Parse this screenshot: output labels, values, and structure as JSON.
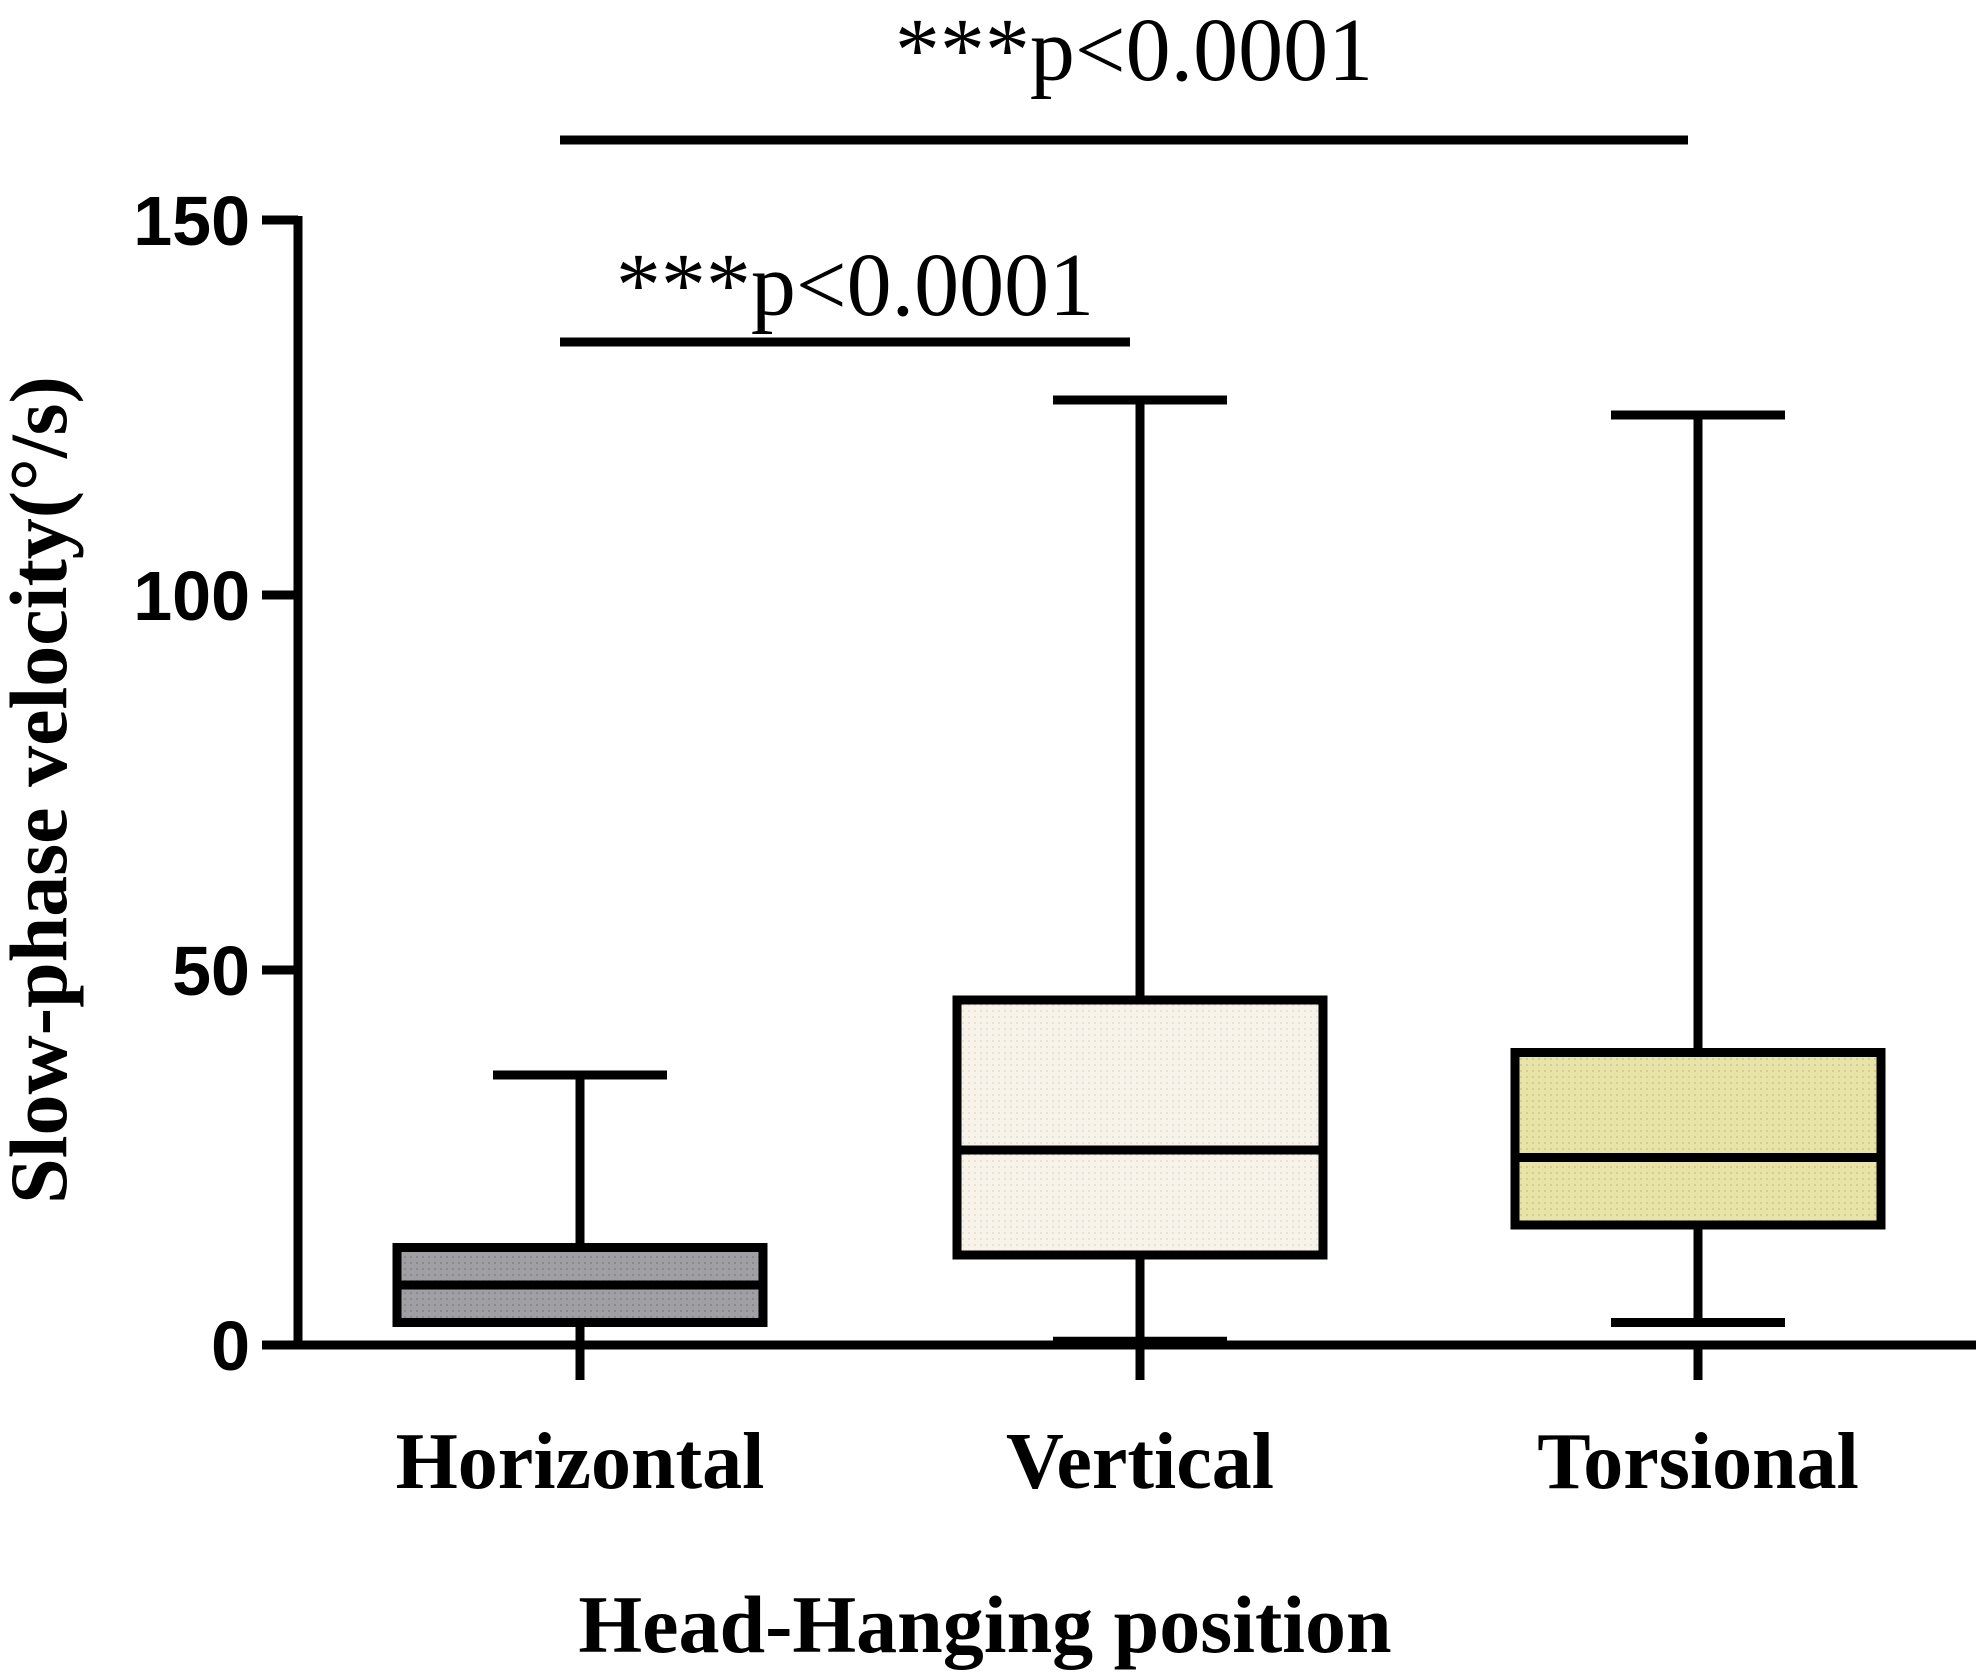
{
  "chart_data": {
    "type": "box",
    "xlabel": "Head-Hanging position",
    "ylabel": "Slow-phase velocity(°/s)",
    "ylim": [
      0,
      150
    ],
    "yticks": [
      0,
      50,
      100,
      150
    ],
    "categories": [
      "Horizontal",
      "Vertical",
      "Torsional"
    ],
    "boxes": [
      {
        "category": "Horizontal",
        "min": -5,
        "q1": 3,
        "median": 8,
        "q3": 13,
        "max": 36,
        "color": "#9a9a9e"
      },
      {
        "category": "Vertical",
        "min": 0.5,
        "q1": 12,
        "median": 26,
        "q3": 46,
        "max": 126,
        "color": "#f5eee0"
      },
      {
        "category": "Torsional",
        "min": 3,
        "q1": 16,
        "median": 25,
        "q3": 39,
        "max": 124,
        "color": "#e6e1a6"
      }
    ],
    "significance": [
      {
        "from": "Horizontal",
        "to": "Vertical",
        "label": "***p<0.0001"
      },
      {
        "from": "Horizontal",
        "to": "Torsional",
        "label": "***p<0.0001"
      }
    ],
    "grid": false,
    "legend": "none"
  }
}
